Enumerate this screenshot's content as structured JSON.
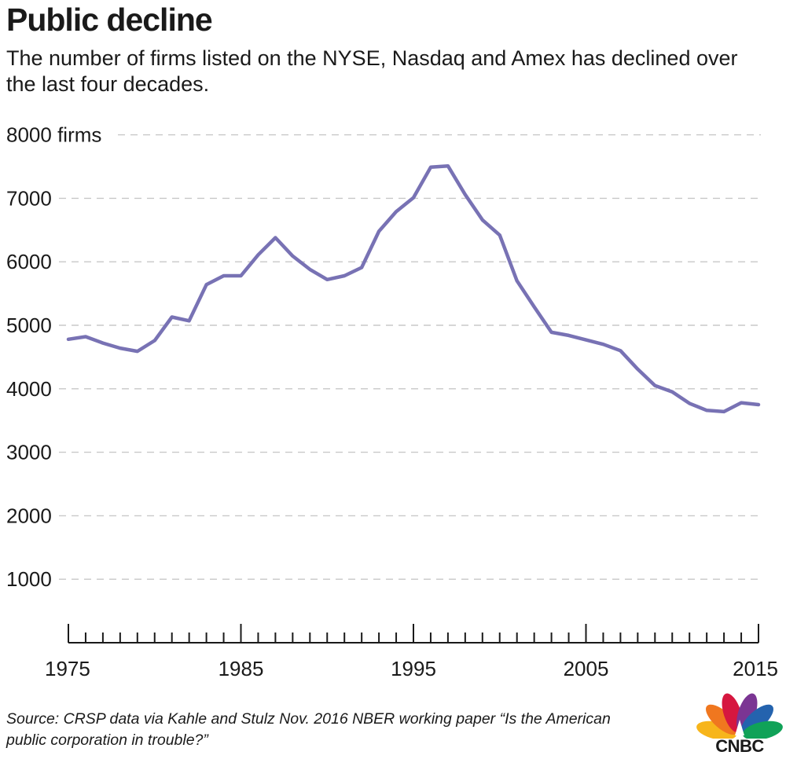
{
  "title": "Public decline",
  "subtitle": "The number of firms listed on the NYSE, Nasdaq and Amex has declined over the last four decades.",
  "source": "Source: CRSP data via Kahle and Stulz Nov. 2016 NBER working paper “Is the American public corporation in trouble?”",
  "logo": {
    "text": "CNBC",
    "colors": [
      "#f7b51b",
      "#f0771f",
      "#d6173f",
      "#7b3593",
      "#2463ae",
      "#10a258"
    ]
  },
  "colors": {
    "line": "#7872b4",
    "grid": "#c8c8c8",
    "axis": "#1a1a1a",
    "text": "#1a1a1a"
  },
  "chart_data": {
    "type": "line",
    "title": "",
    "xlabel": "",
    "ylabel": "",
    "xlim": [
      1975,
      2015
    ],
    "ylim": [
      0,
      8000
    ],
    "grid": true,
    "y_ticks": [
      1000,
      2000,
      3000,
      4000,
      5000,
      6000,
      7000,
      8000
    ],
    "y_tick_labels": [
      "1000",
      "2000",
      "3000",
      "4000",
      "5000",
      "6000",
      "7000",
      "8000 firms"
    ],
    "x_ticks": [
      1975,
      1985,
      1995,
      2005,
      2015
    ],
    "x_tick_labels": [
      "1975",
      "1985",
      "1995",
      "2005",
      "2015"
    ],
    "series": [
      {
        "x": [
          1975,
          1976,
          1977,
          1978,
          1979,
          1980,
          1981,
          1982,
          1983,
          1984,
          1985,
          1986,
          1987,
          1988,
          1989,
          1990,
          1991,
          1992,
          1993,
          1994,
          1995,
          1996,
          1997,
          1998,
          1999,
          2000,
          2001,
          2002,
          2003,
          2004,
          2005,
          2006,
          2007,
          2008,
          2009,
          2010,
          2011,
          2012,
          2013,
          2014,
          2015
        ],
        "y": [
          4780,
          4820,
          4720,
          4640,
          4590,
          4760,
          5130,
          5070,
          5640,
          5780,
          5780,
          6110,
          6380,
          6090,
          5880,
          5720,
          5780,
          5910,
          6480,
          6790,
          7010,
          7490,
          7510,
          7060,
          6660,
          6420,
          5700,
          5290,
          4890,
          4840,
          4770,
          4700,
          4600,
          4310,
          4050,
          3950,
          3770,
          3660,
          3640,
          3780,
          3750
        ]
      }
    ]
  }
}
